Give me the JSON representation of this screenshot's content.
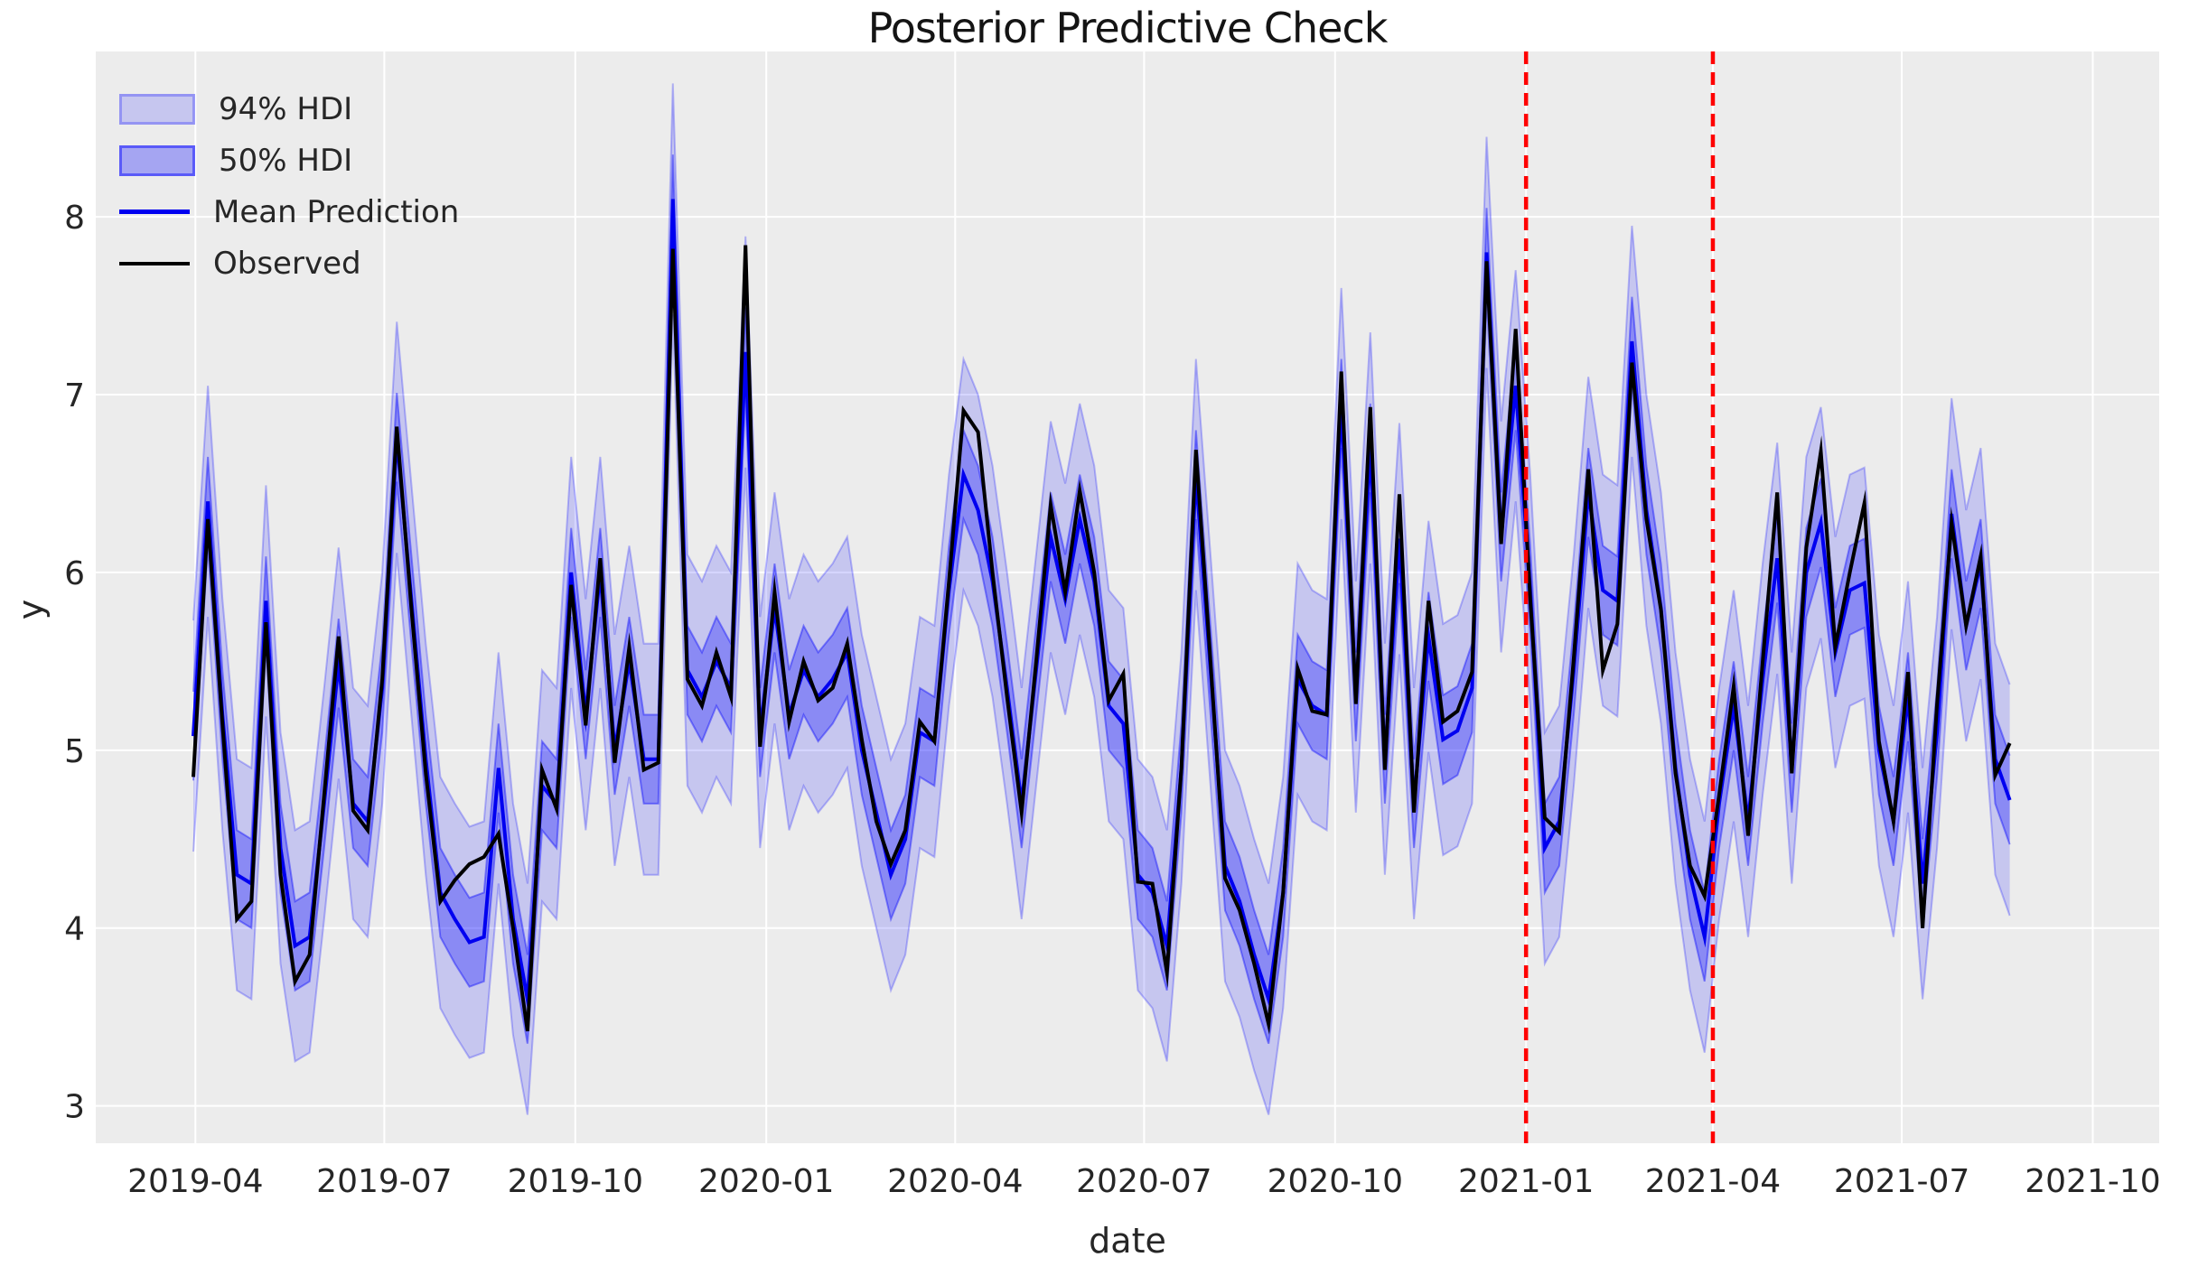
{
  "chart_data": {
    "type": "line",
    "title": "Posterior Predictive Check",
    "xlabel": "date",
    "ylabel": "y",
    "x_ticks": [
      "2019-04",
      "2019-07",
      "2019-10",
      "2020-01",
      "2020-04",
      "2020-07",
      "2020-10",
      "2021-01",
      "2021-04",
      "2021-07",
      "2021-10"
    ],
    "y_ticks": [
      3,
      4,
      5,
      6,
      7,
      8
    ],
    "ylim": [
      2.79,
      8.93
    ],
    "xlim_days": [
      -47,
      947
    ],
    "start_date": "2019-03-31",
    "freq_days": 7,
    "grid": true,
    "legend_position": "upper-left",
    "vlines": [
      "2021-01-01",
      "2021-04-01"
    ],
    "hdi_50_half_width": 0.25,
    "hdi_94_half_width": 0.65,
    "series": [
      {
        "name": "Observed",
        "values": [
          4.85,
          6.3,
          5.15,
          4.05,
          4.15,
          5.72,
          4.3,
          3.7,
          3.85,
          4.75,
          5.64,
          4.66,
          4.55,
          5.4,
          6.82,
          5.8,
          4.87,
          4.15,
          4.27,
          4.36,
          4.4,
          4.53,
          4.0,
          3.42,
          4.89,
          4.67,
          5.93,
          5.14,
          6.08,
          4.93,
          5.58,
          4.89,
          4.93,
          7.82,
          5.4,
          5.25,
          5.55,
          5.3,
          7.84,
          5.02,
          5.89,
          5.16,
          5.5,
          5.28,
          5.35,
          5.6,
          5.06,
          4.6,
          4.36,
          4.55,
          5.16,
          5.05,
          5.95,
          6.91,
          6.79,
          6.0,
          5.3,
          4.65,
          5.5,
          6.38,
          5.89,
          6.46,
          6.0,
          5.28,
          5.43,
          4.26,
          4.25,
          3.75,
          4.9,
          6.69,
          5.5,
          4.28,
          4.1,
          3.8,
          3.46,
          4.2,
          5.46,
          5.22,
          5.2,
          7.13,
          5.26,
          6.93,
          4.89,
          6.44,
          4.65,
          5.84,
          5.16,
          5.22,
          5.44,
          7.75,
          6.16,
          7.37,
          5.85,
          4.62,
          4.54,
          5.52,
          6.58,
          5.45,
          5.71,
          7.18,
          6.3,
          5.79,
          4.87,
          4.35,
          4.18,
          4.75,
          5.36,
          4.52,
          5.5,
          6.45,
          4.87,
          6.14,
          6.68,
          5.58,
          6.0,
          6.39,
          5.05,
          4.6,
          5.44,
          4.0,
          5.26,
          6.28,
          5.7,
          6.09,
          4.86,
          5.04
        ]
      },
      {
        "name": "Mean Prediction",
        "values": [
          5.08,
          6.4,
          5.2,
          4.3,
          4.25,
          5.84,
          4.45,
          3.9,
          3.95,
          4.7,
          5.49,
          4.7,
          4.6,
          5.35,
          6.76,
          5.85,
          4.95,
          4.2,
          4.05,
          3.92,
          3.95,
          4.9,
          4.05,
          3.6,
          4.8,
          4.7,
          6.0,
          5.2,
          6.0,
          5.0,
          5.5,
          4.95,
          4.95,
          8.1,
          5.45,
          5.3,
          5.5,
          5.35,
          7.24,
          5.1,
          5.8,
          5.2,
          5.45,
          5.3,
          5.4,
          5.55,
          5.0,
          4.65,
          4.3,
          4.5,
          5.1,
          5.05,
          5.9,
          6.55,
          6.35,
          5.95,
          5.35,
          4.7,
          5.45,
          6.2,
          5.85,
          6.3,
          5.95,
          5.25,
          5.15,
          4.3,
          4.2,
          3.9,
          4.9,
          6.55,
          5.45,
          4.35,
          4.15,
          3.85,
          3.6,
          4.2,
          5.4,
          5.25,
          5.2,
          6.95,
          5.3,
          6.7,
          4.95,
          6.19,
          4.7,
          5.64,
          5.06,
          5.11,
          5.35,
          7.8,
          6.2,
          7.05,
          5.9,
          4.45,
          4.6,
          5.45,
          6.45,
          5.9,
          5.84,
          7.3,
          6.35,
          5.8,
          4.9,
          4.3,
          3.95,
          4.7,
          5.25,
          4.6,
          5.4,
          6.08,
          4.9,
          6.0,
          6.28,
          5.55,
          5.9,
          5.94,
          5.0,
          4.6,
          5.3,
          4.25,
          5.1,
          6.33,
          5.7,
          6.05,
          4.95,
          4.72
        ]
      }
    ]
  },
  "legend": {
    "items": [
      {
        "label": "94% HDI"
      },
      {
        "label": "50% HDI"
      },
      {
        "label": "Mean Prediction"
      },
      {
        "label": "Observed"
      }
    ]
  },
  "colors": {
    "plot_background": "#ececec",
    "grid": "#ffffff",
    "observed_line": "#000000",
    "mean_line": "#0000f0",
    "hdi_94_fill": "rgba(0,0,255,0.16)",
    "hdi_94_edge": "rgba(0,0,255,0.25)",
    "hdi_50_fill": "rgba(0,0,255,0.30)",
    "hdi_50_edge": "rgba(0,0,255,0.40)",
    "vline": "#ff0000",
    "text": "#262626"
  }
}
